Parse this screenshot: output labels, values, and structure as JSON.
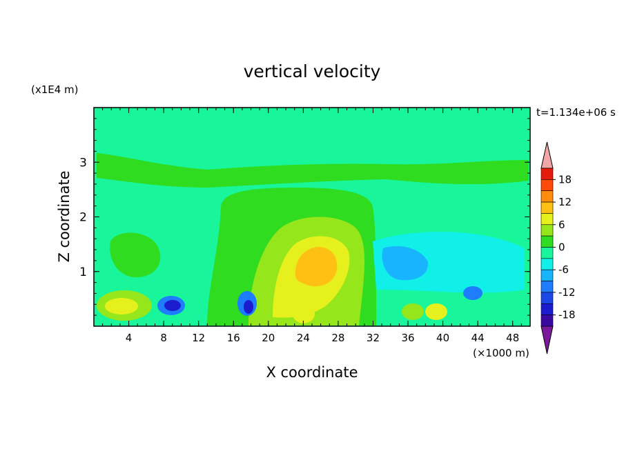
{
  "chart_data": {
    "type": "heatmap",
    "title": "vertical velocity",
    "xlabel": "X coordinate",
    "ylabel": "Z coordinate",
    "x_unit": "(×1000 m)",
    "y_unit": "(x1E4 m)",
    "time_label": "t=1.134e+06 s",
    "xlim": [
      0,
      50
    ],
    "ylim": [
      0,
      4
    ],
    "x_ticks": [
      "4",
      "8",
      "12",
      "16",
      "20",
      "24",
      "28",
      "32",
      "36",
      "40",
      "44",
      "48"
    ],
    "y_ticks": [
      "1",
      "2",
      "3"
    ],
    "colorbar": {
      "levels": [
        -21,
        -18,
        -15,
        -12,
        -9,
        -6,
        -3,
        0,
        3,
        6,
        9,
        12,
        15,
        18,
        21
      ],
      "labels": [
        "18",
        "12",
        "6",
        "0",
        "-6",
        "-12",
        "-18"
      ],
      "colors": [
        "#7a1a9a",
        "#3a0aa0",
        "#1c1ccf",
        "#1c46e6",
        "#1e7cff",
        "#19b4ff",
        "#11f0e8",
        "#19f59a",
        "#2fdc1f",
        "#96e61c",
        "#e6f01c",
        "#ffc014",
        "#ff8c0c",
        "#ff4a0a",
        "#e61a0a",
        "#f2a6a6"
      ]
    },
    "features": [
      {
        "name": "background",
        "value": -1
      },
      {
        "name": "upper-green-band",
        "x": [
          0,
          50
        ],
        "z": [
          2.7,
          3.2
        ],
        "value": 0.5
      },
      {
        "name": "central-updraft-plume",
        "x": [
          14,
          32
        ],
        "z": [
          0,
          2.6
        ],
        "value": 1.5
      },
      {
        "name": "updraft-core",
        "x": [
          20,
          30
        ],
        "z": [
          0.5,
          2.0
        ],
        "value": 5
      },
      {
        "name": "updraft-max",
        "x": [
          23,
          28
        ],
        "z": [
          0.8,
          1.4
        ],
        "value": 9
      },
      {
        "name": "left-low-cell",
        "x": [
          0,
          7
        ],
        "z": [
          0,
          0.6
        ],
        "value": 6
      },
      {
        "name": "downdraft-1",
        "x": [
          8,
          11
        ],
        "z": [
          0.2,
          0.5
        ],
        "value": -11
      },
      {
        "name": "downdraft-2",
        "x": [
          16,
          19
        ],
        "z": [
          0.2,
          0.6
        ],
        "value": -9
      },
      {
        "name": "right-downdraft-zone",
        "x": [
          32,
          40
        ],
        "z": [
          0.6,
          1.6
        ],
        "value": -4
      }
    ]
  }
}
